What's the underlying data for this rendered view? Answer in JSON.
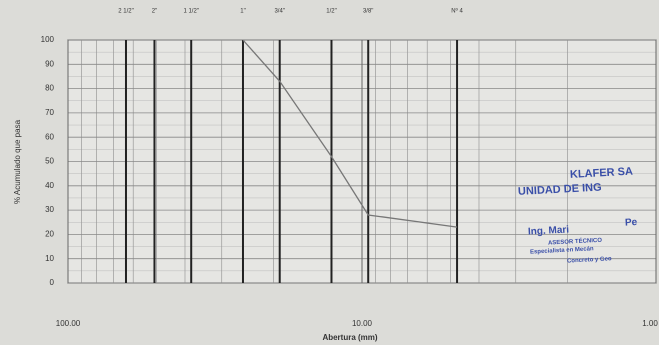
{
  "chart_data": {
    "type": "line",
    "log_x": true,
    "y_label": "% Acumulado que pasa",
    "x_label": "Abertura (mm)",
    "x": [
      25.4,
      19.05,
      12.7,
      9.525,
      4.75
    ],
    "values": [
      100,
      83,
      52,
      28,
      23
    ],
    "color": "#777777",
    "xlim": [
      100,
      1
    ],
    "ylim": [
      0,
      100
    ],
    "xticks": [
      {
        "value": 100,
        "label": "100.00"
      },
      {
        "value": 10,
        "label": "10.00"
      },
      {
        "value": 1,
        "label": "1.00"
      }
    ],
    "xminor": [
      90,
      80,
      70,
      60,
      50,
      40,
      30,
      20,
      9,
      8,
      7,
      6,
      5,
      4,
      3,
      2
    ],
    "yticks": [
      0,
      10,
      20,
      30,
      40,
      50,
      60,
      70,
      80,
      90,
      100
    ],
    "yminor": [
      5,
      15,
      25,
      35,
      45,
      55,
      65,
      75,
      85,
      95
    ],
    "grid": true,
    "sieves": [
      {
        "value": 63.5,
        "label": "2 1/2\""
      },
      {
        "value": 50.8,
        "label": "2\""
      },
      {
        "value": 38.1,
        "label": "1 1/2\""
      },
      {
        "value": 25.4,
        "label": "1\""
      },
      {
        "value": 19.05,
        "label": "3/4\""
      },
      {
        "value": 12.7,
        "label": "1/2\""
      },
      {
        "value": 9.525,
        "label": "3/8\""
      },
      {
        "value": 4.75,
        "label": "Nº 4"
      }
    ],
    "annotations": [
      "KLAFER SA",
      "UNIDAD DE ING",
      "Ing. Mari",
      "Pe",
      "ASESOR TÉCNICO",
      "Especialista en Mecán",
      "Concreto y Geo"
    ]
  }
}
